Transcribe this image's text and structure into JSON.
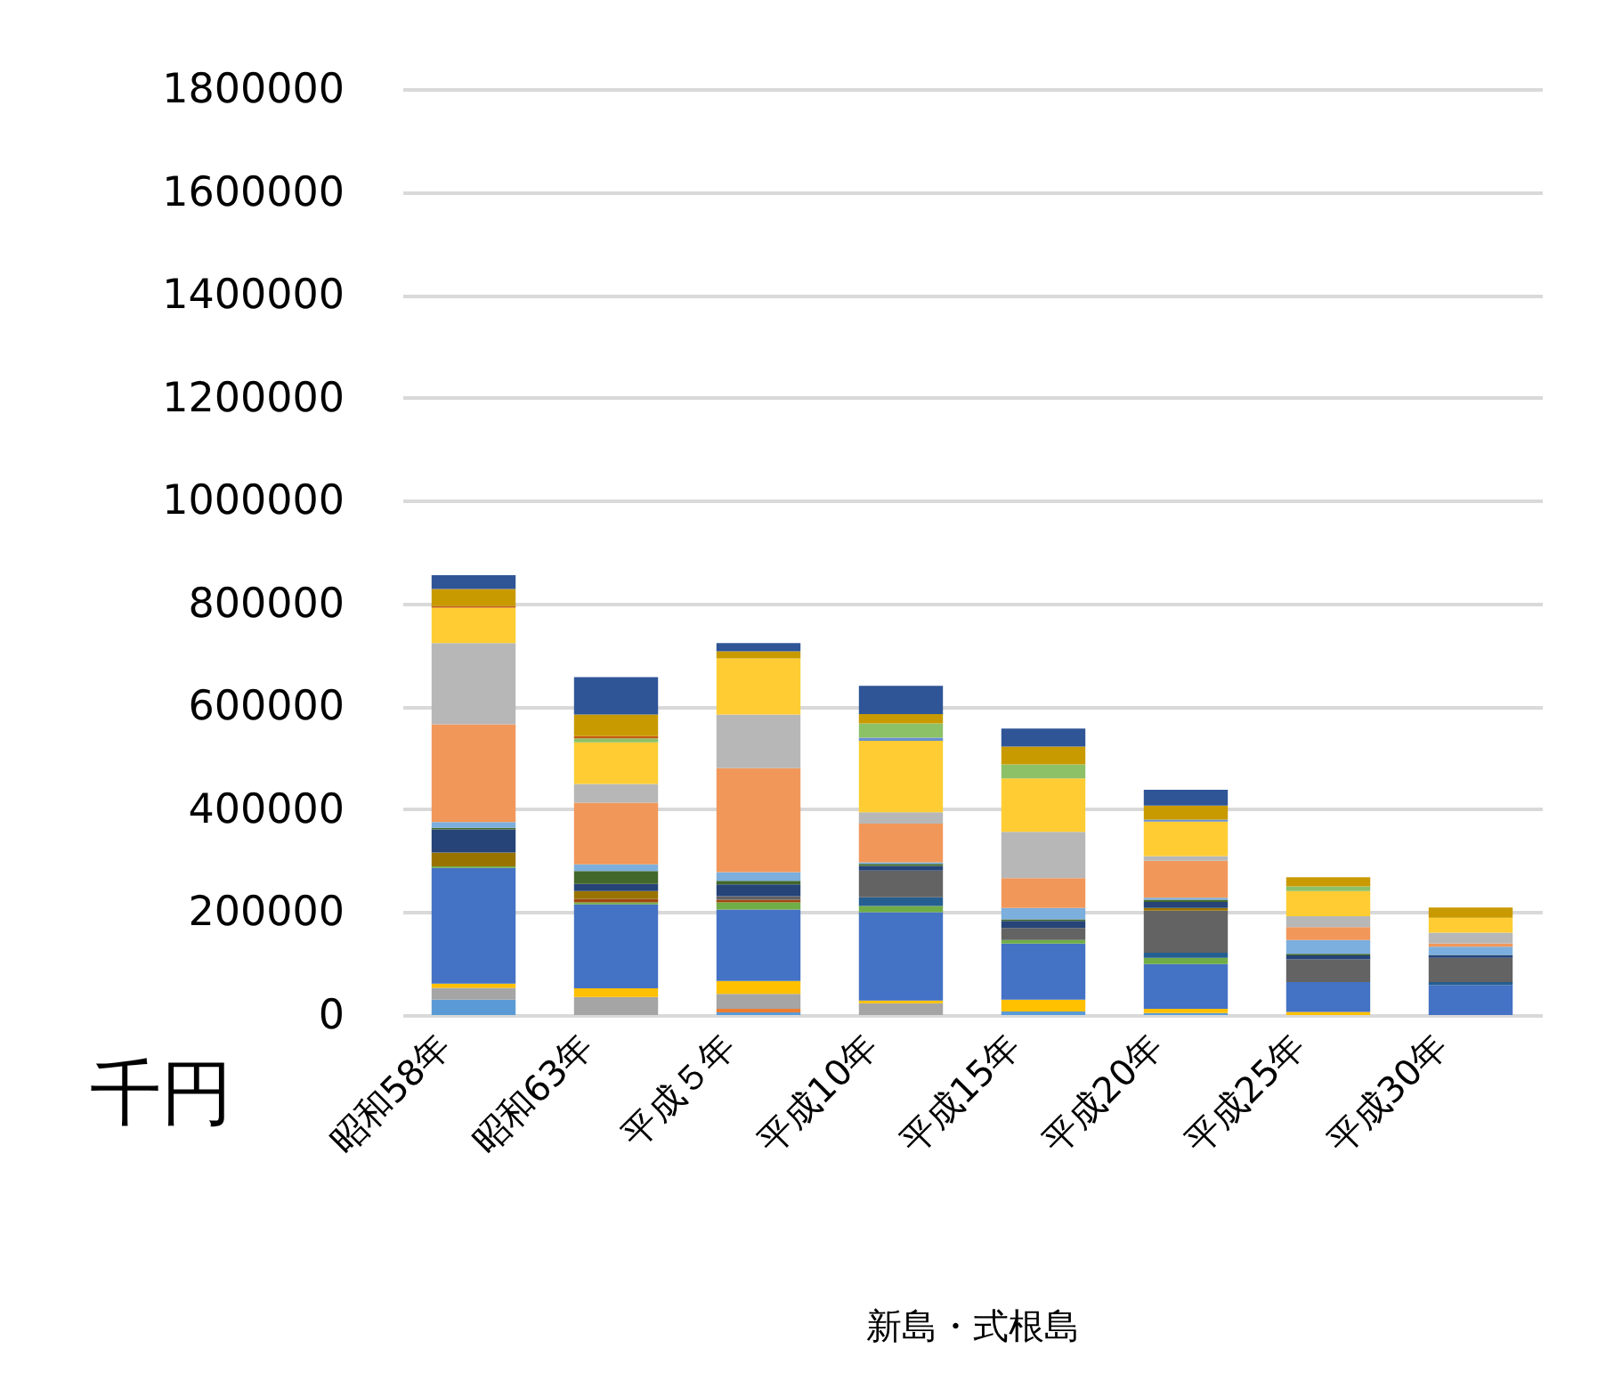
{
  "chart_data": {
    "type": "bar",
    "stacked": true,
    "categories": [
      "昭和58年",
      "昭和63年",
      "平成５年",
      "平成10年",
      "平成15年",
      "平成20年",
      "平成25年",
      "平成30年"
    ],
    "xlabel": "新島・式根島",
    "ylabel": "千円",
    "ylim": [
      0,
      1800000
    ],
    "yticks": [
      0,
      200000,
      400000,
      600000,
      800000,
      1000000,
      1200000,
      1400000,
      1600000,
      1800000
    ],
    "grid": "y",
    "series": [
      {
        "color": "#5b9bd5",
        "values": [
          30000,
          null,
          5000,
          null,
          7000,
          4000,
          null,
          null
        ]
      },
      {
        "color": "#ed7d31",
        "values": [
          null,
          null,
          7000,
          null,
          null,
          null,
          null,
          null
        ]
      },
      {
        "color": "#a5a5a5",
        "values": [
          23000,
          35000,
          29000,
          23000,
          null,
          null,
          null,
          null
        ]
      },
      {
        "color": "#ffc000",
        "values": [
          8000,
          17000,
          25000,
          5000,
          23000,
          8000,
          6000,
          null
        ]
      },
      {
        "color": "#4472c4",
        "values": [
          225000,
          163000,
          139000,
          172000,
          109000,
          87000,
          58000,
          58000
        ]
      },
      {
        "color": "#70ad47",
        "values": [
          3000,
          4000,
          14000,
          12000,
          7000,
          12000,
          null,
          null
        ]
      },
      {
        "color": "#255e91",
        "values": [
          null,
          null,
          null,
          17000,
          null,
          10000,
          null,
          6000
        ]
      },
      {
        "color": "#9e480e",
        "values": [
          null,
          7000,
          5000,
          null,
          null,
          null,
          null,
          null
        ]
      },
      {
        "color": "#636363",
        "values": [
          null,
          null,
          7000,
          52000,
          23000,
          82000,
          44000,
          47000
        ]
      },
      {
        "color": "#997300",
        "values": [
          27000,
          15000,
          null,
          null,
          null,
          5000,
          null,
          null
        ]
      },
      {
        "color": "#264478",
        "values": [
          45000,
          14000,
          23000,
          9000,
          14000,
          12000,
          8000,
          6000
        ]
      },
      {
        "color": "#43682b",
        "values": [
          3000,
          25000,
          7000,
          4000,
          3000,
          4000,
          3000,
          null
        ]
      },
      {
        "color": "#7cafdd",
        "values": [
          11000,
          13000,
          17000,
          3000,
          22000,
          4000,
          27000,
          16000
        ]
      },
      {
        "color": "#f1975a",
        "values": [
          190000,
          120000,
          202000,
          75000,
          58000,
          72000,
          25000,
          6000
        ]
      },
      {
        "color": "#b7b7b7",
        "values": [
          158000,
          36000,
          104000,
          22000,
          90000,
          9000,
          21000,
          21000
        ]
      },
      {
        "color": "#ffcd33",
        "values": [
          69000,
          81000,
          109000,
          139000,
          104000,
          67000,
          49000,
          29000
        ]
      },
      {
        "color": "#698ed0",
        "values": [
          null,
          null,
          null,
          6000,
          null,
          4000,
          null,
          null
        ]
      },
      {
        "color": "#8cc168",
        "values": [
          null,
          8000,
          null,
          28000,
          27000,
          null,
          9000,
          null
        ]
      },
      {
        "color": "#c55a11",
        "values": [
          3000,
          4000,
          null,
          null,
          null,
          null,
          null,
          null
        ]
      },
      {
        "color": "#c99a00",
        "values": [
          33000,
          42000,
          14000,
          18000,
          35000,
          27000,
          18000,
          20000
        ]
      },
      {
        "color": "#2f5597",
        "values": [
          27000,
          73000,
          16000,
          55000,
          35000,
          31000,
          null,
          null
        ]
      }
    ]
  }
}
